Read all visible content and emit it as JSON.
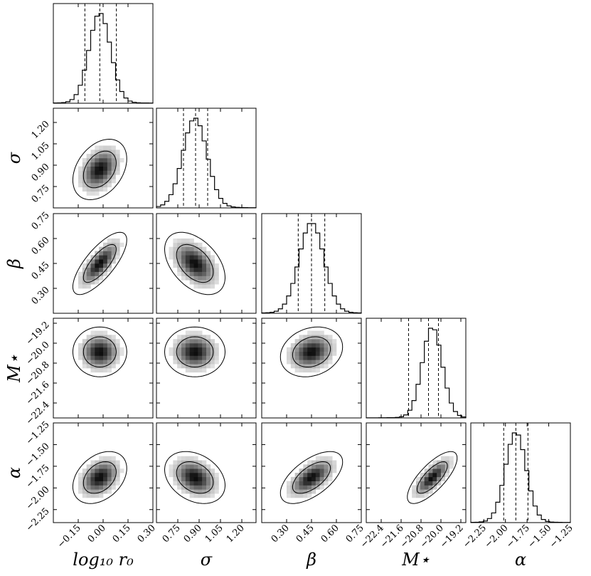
{
  "chart_data": {
    "type": "corner",
    "parameters": [
      {
        "key": "logr0",
        "label": "log₁₀ r₀",
        "range": [
          -0.3,
          0.3
        ],
        "ticks": [
          "−0.15",
          "0.00",
          "0.15",
          "0.30"
        ],
        "tick_values": [
          -0.15,
          0.0,
          0.15,
          0.3
        ],
        "quantiles": [
          -0.11,
          -0.02,
          0.08
        ],
        "mean": -0.02,
        "sd": 0.065
      },
      {
        "key": "sigma",
        "label": "σ",
        "range": [
          0.6,
          1.3
        ],
        "ticks": [
          "0.75",
          "0.90",
          "1.05",
          "1.20"
        ],
        "tick_values": [
          0.75,
          0.9,
          1.05,
          1.2
        ],
        "quantiles": [
          0.79,
          0.875,
          0.96
        ],
        "mean": 0.87,
        "sd": 0.085
      },
      {
        "key": "beta",
        "label": "β",
        "range": [
          0.15,
          0.75
        ],
        "ticks": [
          "0.30",
          "0.45",
          "0.60",
          "0.75"
        ],
        "tick_values": [
          0.3,
          0.45,
          0.6,
          0.75
        ],
        "quantiles": [
          0.37,
          0.45,
          0.53
        ],
        "mean": 0.45,
        "sd": 0.075
      },
      {
        "key": "mstar",
        "label": "M⋆",
        "range": [
          -23.0,
          -19.0
        ],
        "ticks": [
          "−22.4",
          "−21.6",
          "−20.8",
          "−20.0",
          "−19.2"
        ],
        "tick_values": [
          -22.4,
          -21.6,
          -20.8,
          -20.0,
          -19.2
        ],
        "quantiles": [
          -21.3,
          -20.5,
          -20.1
        ],
        "mean": -20.35,
        "sd": 0.4
      },
      {
        "key": "alpha",
        "label": "α",
        "range": [
          -2.4,
          -1.25
        ],
        "ticks": [
          "−2.25",
          "−2.00",
          "−1.75",
          "−1.50",
          "−1.25"
        ],
        "tick_values": [
          -2.25,
          -2.0,
          -1.75,
          -1.5,
          -1.25
        ],
        "quantiles": [
          -2.02,
          -1.88,
          -1.74
        ],
        "mean": -1.88,
        "sd": 0.12
      }
    ],
    "correlations": [
      {
        "pair": [
          "logr0",
          "sigma"
        ],
        "rho": 0.35
      },
      {
        "pair": [
          "logr0",
          "beta"
        ],
        "rho": 0.75
      },
      {
        "pair": [
          "logr0",
          "mstar"
        ],
        "rho": 0.0
      },
      {
        "pair": [
          "logr0",
          "alpha"
        ],
        "rho": 0.35
      },
      {
        "pair": [
          "sigma",
          "beta"
        ],
        "rho": -0.45
      },
      {
        "pair": [
          "sigma",
          "mstar"
        ],
        "rho": 0.0
      },
      {
        "pair": [
          "sigma",
          "alpha"
        ],
        "rho": -0.3
      },
      {
        "pair": [
          "beta",
          "mstar"
        ],
        "rho": 0.2
      },
      {
        "pair": [
          "beta",
          "alpha"
        ],
        "rho": 0.6
      },
      {
        "pair": [
          "mstar",
          "alpha"
        ],
        "rho": 0.75
      }
    ],
    "grid": false,
    "legend": "none"
  }
}
